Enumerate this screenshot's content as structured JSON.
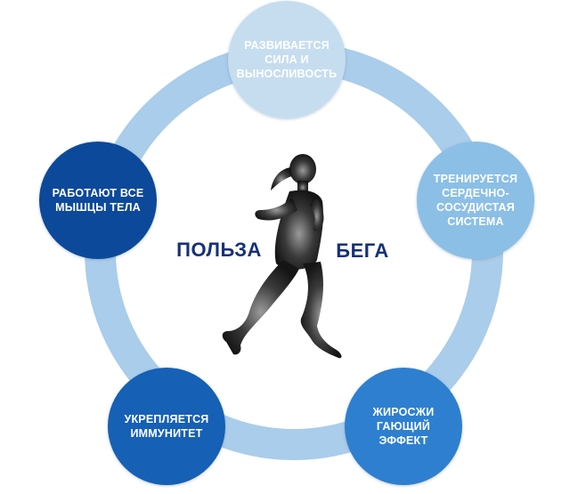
{
  "diagram": {
    "center_title_left": "ПОЛЬЗА",
    "center_title_right": "БЕГА",
    "nodes": [
      {
        "id": "strength",
        "label": "РАЗВИВАЕТСЯ\nСИЛА И\nВЫНОСЛИВОСТЬ",
        "color": "#c6ddf0"
      },
      {
        "id": "cardio",
        "label": "ТРЕНИРУЕТСЯ\nСЕРДЕЧНО-\nСОСУДИСТАЯ\nСИСТЕМА",
        "color": "#8bbfe6"
      },
      {
        "id": "fat",
        "label": "ЖИРОСЖИ\nГАЮЩИЙ\nЭФФЕКТ",
        "color": "#2f7fd0"
      },
      {
        "id": "immunity",
        "label": "УКРЕПЛЯЕТСЯ\nИММУНИТЕТ",
        "color": "#1860b5"
      },
      {
        "id": "muscles",
        "label": "РАБОТАЮТ ВСЕ\nМЫШЦЫ ТЕЛА",
        "color": "#0f4a9a"
      }
    ],
    "ring_color": "#a9cdea",
    "center_color": "#ffffff",
    "runner_color": "#1a1a1a",
    "runner_icon": "runner-silhouette-icon"
  }
}
